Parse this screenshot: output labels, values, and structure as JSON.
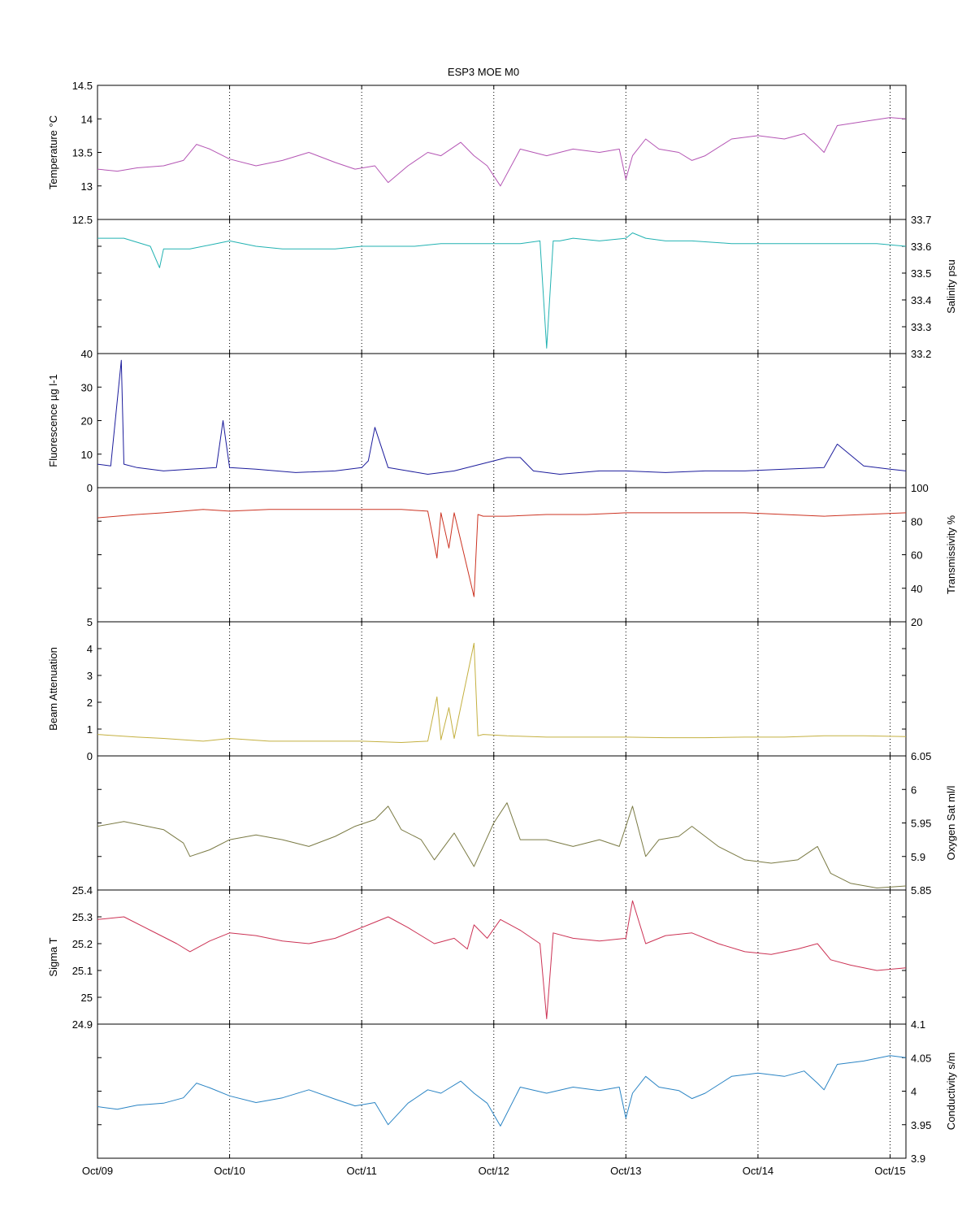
{
  "title": "ESP3 MOE   M0",
  "x_axis": {
    "tick_labels": [
      "Oct/09",
      "Oct/10",
      "Oct/11",
      "Oct/12",
      "Oct/13",
      "Oct/14",
      "Oct/15"
    ],
    "tick_days": [
      0,
      1,
      2,
      3,
      4,
      5,
      6
    ],
    "xlim_days": [
      0,
      6.12
    ],
    "grid": "vertical dotted lines at each day"
  },
  "chart_data": [
    {
      "type": "line",
      "ylabel": "Temperature °C",
      "axis_side": "left",
      "color": "#b455b4",
      "ylim": [
        12.5,
        14.5
      ],
      "ticks": [
        12.5,
        13,
        13.5,
        14,
        14.5
      ],
      "tick_labels": [
        "12.5",
        "13",
        "13.5",
        "14",
        "14.5"
      ],
      "series": [
        {
          "x": [
            0,
            0.15,
            0.3,
            0.5,
            0.65,
            0.75,
            0.85,
            1.0,
            1.2,
            1.4,
            1.6,
            1.8,
            1.95,
            2.1,
            2.2,
            2.35,
            2.5,
            2.6,
            2.75,
            2.85,
            2.95,
            3.05,
            3.2,
            3.4,
            3.6,
            3.8,
            3.95,
            4.0,
            4.05,
            4.15,
            4.25,
            4.4,
            4.5,
            4.6,
            4.8,
            5.0,
            5.2,
            5.35,
            5.45,
            5.5,
            5.6,
            5.8,
            6.0,
            6.12
          ],
          "y": [
            13.25,
            13.22,
            13.27,
            13.3,
            13.38,
            13.62,
            13.55,
            13.4,
            13.3,
            13.38,
            13.5,
            13.35,
            13.25,
            13.3,
            13.05,
            13.3,
            13.5,
            13.45,
            13.65,
            13.45,
            13.3,
            13.0,
            13.55,
            13.45,
            13.55,
            13.5,
            13.55,
            13.1,
            13.45,
            13.7,
            13.55,
            13.5,
            13.38,
            13.45,
            13.7,
            13.75,
            13.7,
            13.78,
            13.6,
            13.5,
            13.9,
            13.96,
            14.02,
            14.0
          ]
        }
      ]
    },
    {
      "type": "line",
      "ylabel": "Salinity psu",
      "axis_side": "right",
      "color": "#22b2b2",
      "ylim": [
        33.2,
        33.7
      ],
      "ticks": [
        33.2,
        33.3,
        33.4,
        33.5,
        33.6,
        33.7
      ],
      "tick_labels": [
        "33.2",
        "33.3",
        "33.4",
        "33.5",
        "33.6",
        "33.7"
      ],
      "series": [
        {
          "x": [
            0,
            0.2,
            0.4,
            0.47,
            0.5,
            0.7,
            0.9,
            1.0,
            1.2,
            1.4,
            1.6,
            1.8,
            2.0,
            2.2,
            2.4,
            2.6,
            2.8,
            3.0,
            3.2,
            3.35,
            3.4,
            3.45,
            3.5,
            3.6,
            3.8,
            4.0,
            4.05,
            4.15,
            4.3,
            4.5,
            4.8,
            5.0,
            5.3,
            5.6,
            5.9,
            6.12
          ],
          "y": [
            33.63,
            33.63,
            33.6,
            33.52,
            33.59,
            33.59,
            33.61,
            33.62,
            33.6,
            33.59,
            33.59,
            33.59,
            33.6,
            33.6,
            33.6,
            33.61,
            33.61,
            33.61,
            33.61,
            33.62,
            33.22,
            33.62,
            33.62,
            33.63,
            33.62,
            33.63,
            33.65,
            33.63,
            33.62,
            33.62,
            33.61,
            33.61,
            33.61,
            33.61,
            33.61,
            33.6
          ]
        }
      ]
    },
    {
      "type": "line",
      "ylabel": "Fluorescence µg l-1",
      "axis_side": "left",
      "color": "#1c1c9c",
      "ylim": [
        0,
        40
      ],
      "ticks": [
        0,
        10,
        20,
        30,
        40
      ],
      "tick_labels": [
        "0",
        "10",
        "20",
        "30",
        "40"
      ],
      "series": [
        {
          "x": [
            0,
            0.1,
            0.18,
            0.2,
            0.3,
            0.5,
            0.7,
            0.9,
            0.95,
            1.0,
            1.2,
            1.5,
            1.8,
            2.0,
            2.05,
            2.1,
            2.2,
            2.35,
            2.5,
            2.7,
            2.9,
            3.0,
            3.1,
            3.2,
            3.3,
            3.5,
            3.8,
            4.0,
            4.3,
            4.6,
            4.9,
            5.2,
            5.5,
            5.6,
            5.8,
            6.0,
            6.12
          ],
          "y": [
            7,
            6.5,
            38,
            7,
            6,
            5,
            5.5,
            6,
            20,
            6,
            5.5,
            4.5,
            5,
            6,
            8,
            18,
            6,
            5,
            4,
            5,
            7,
            8,
            9,
            9,
            5,
            4,
            5,
            5,
            4.5,
            5,
            5,
            5.5,
            6,
            13,
            6.5,
            5.5,
            5
          ]
        }
      ]
    },
    {
      "type": "line",
      "ylabel": "Transmissivity %",
      "axis_side": "right",
      "color": "#cc3322",
      "ylim": [
        20,
        100
      ],
      "ticks": [
        20,
        40,
        60,
        80,
        100
      ],
      "tick_labels": [
        "20",
        "40",
        "60",
        "80",
        "100"
      ],
      "series": [
        {
          "x": [
            0,
            0.3,
            0.5,
            0.8,
            1.0,
            1.3,
            1.6,
            2.0,
            2.3,
            2.5,
            2.57,
            2.6,
            2.66,
            2.7,
            2.85,
            2.88,
            2.92,
            3.1,
            3.4,
            3.7,
            4.0,
            4.3,
            4.6,
            4.9,
            5.2,
            5.5,
            5.8,
            6.12
          ],
          "y": [
            82,
            84,
            85,
            87,
            86,
            87,
            87,
            87,
            87,
            86,
            58,
            85,
            64,
            85,
            35,
            84,
            83,
            83,
            84,
            84,
            85,
            85,
            85,
            85,
            84,
            83,
            84,
            85
          ]
        }
      ]
    },
    {
      "type": "line",
      "ylabel": "Beam Attenuation",
      "axis_side": "left",
      "color": "#c4b040",
      "ylim": [
        0,
        5
      ],
      "ticks": [
        0,
        1,
        2,
        3,
        4,
        5
      ],
      "tick_labels": [
        "0",
        "1",
        "2",
        "3",
        "4",
        "5"
      ],
      "series": [
        {
          "x": [
            0,
            0.3,
            0.5,
            0.8,
            1.0,
            1.3,
            1.6,
            2.0,
            2.3,
            2.5,
            2.57,
            2.6,
            2.66,
            2.7,
            2.85,
            2.88,
            2.92,
            3.1,
            3.4,
            3.7,
            4.0,
            4.3,
            4.6,
            4.9,
            5.2,
            5.5,
            5.8,
            6.12
          ],
          "y": [
            0.8,
            0.7,
            0.65,
            0.55,
            0.65,
            0.55,
            0.55,
            0.55,
            0.5,
            0.55,
            2.2,
            0.6,
            1.8,
            0.65,
            4.2,
            0.75,
            0.8,
            0.75,
            0.7,
            0.7,
            0.7,
            0.68,
            0.68,
            0.7,
            0.7,
            0.75,
            0.75,
            0.72
          ]
        }
      ]
    },
    {
      "type": "line",
      "ylabel": "Oxygen Sat ml/l",
      "axis_side": "right",
      "color": "#7a7a44",
      "ylim": [
        5.85,
        6.05
      ],
      "ticks": [
        5.85,
        5.9,
        5.95,
        6,
        6.05
      ],
      "tick_labels": [
        "5.85",
        "5.9",
        "5.95",
        "6",
        "6.05"
      ],
      "series": [
        {
          "x": [
            0,
            0.2,
            0.5,
            0.65,
            0.7,
            0.85,
            1.0,
            1.2,
            1.4,
            1.6,
            1.8,
            1.95,
            2.1,
            2.2,
            2.3,
            2.45,
            2.55,
            2.7,
            2.85,
            3.0,
            3.1,
            3.2,
            3.4,
            3.6,
            3.8,
            3.95,
            4.05,
            4.15,
            4.25,
            4.4,
            4.5,
            4.7,
            4.9,
            5.1,
            5.3,
            5.45,
            5.55,
            5.7,
            5.9,
            6.12
          ],
          "y": [
            5.945,
            5.952,
            5.94,
            5.92,
            5.9,
            5.91,
            5.925,
            5.932,
            5.925,
            5.915,
            5.93,
            5.945,
            5.955,
            5.975,
            5.94,
            5.925,
            5.895,
            5.935,
            5.885,
            5.95,
            5.98,
            5.925,
            5.925,
            5.915,
            5.925,
            5.915,
            5.975,
            5.9,
            5.925,
            5.93,
            5.945,
            5.915,
            5.895,
            5.89,
            5.895,
            5.915,
            5.875,
            5.86,
            5.853,
            5.856
          ]
        }
      ]
    },
    {
      "type": "line",
      "ylabel": "Sigma T",
      "axis_side": "left",
      "color": "#cc3355",
      "ylim": [
        24.9,
        25.4
      ],
      "ticks": [
        24.9,
        25,
        25.1,
        25.2,
        25.3,
        25.4
      ],
      "tick_labels": [
        "24.9",
        "25",
        "25.1",
        "25.2",
        "25.3",
        "25.4"
      ],
      "series": [
        {
          "x": [
            0,
            0.2,
            0.4,
            0.6,
            0.7,
            0.85,
            1.0,
            1.2,
            1.4,
            1.6,
            1.8,
            1.95,
            2.1,
            2.2,
            2.35,
            2.55,
            2.7,
            2.8,
            2.85,
            2.95,
            3.05,
            3.2,
            3.35,
            3.4,
            3.45,
            3.6,
            3.8,
            4.0,
            4.05,
            4.15,
            4.3,
            4.5,
            4.7,
            4.9,
            5.1,
            5.3,
            5.45,
            5.55,
            5.7,
            5.9,
            6.12
          ],
          "y": [
            25.29,
            25.3,
            25.25,
            25.2,
            25.17,
            25.21,
            25.24,
            25.23,
            25.21,
            25.2,
            25.22,
            25.25,
            25.28,
            25.3,
            25.26,
            25.2,
            25.22,
            25.18,
            25.27,
            25.22,
            25.29,
            25.25,
            25.2,
            24.92,
            25.24,
            25.22,
            25.21,
            25.22,
            25.36,
            25.2,
            25.23,
            25.24,
            25.2,
            25.17,
            25.16,
            25.18,
            25.2,
            25.14,
            25.12,
            25.1,
            25.11
          ]
        }
      ]
    },
    {
      "type": "line",
      "ylabel": "Conductivity s/m",
      "axis_side": "right",
      "color": "#2a84c4",
      "ylim": [
        3.9,
        4.1
      ],
      "ticks": [
        3.9,
        3.95,
        4,
        4.05,
        4.1
      ],
      "tick_labels": [
        "3.9",
        "3.95",
        "4",
        "4.05",
        "4.1"
      ],
      "series": [
        {
          "x": [
            0,
            0.15,
            0.3,
            0.5,
            0.65,
            0.75,
            0.85,
            1.0,
            1.2,
            1.4,
            1.6,
            1.8,
            1.95,
            2.1,
            2.2,
            2.35,
            2.5,
            2.6,
            2.75,
            2.85,
            2.95,
            3.05,
            3.2,
            3.4,
            3.6,
            3.8,
            3.95,
            4.0,
            4.05,
            4.15,
            4.25,
            4.4,
            4.5,
            4.6,
            4.8,
            5.0,
            5.2,
            5.35,
            5.45,
            5.5,
            5.6,
            5.8,
            6.0,
            6.12
          ],
          "y": [
            3.977,
            3.973,
            3.979,
            3.982,
            3.99,
            4.012,
            4.005,
            3.993,
            3.983,
            3.99,
            4.002,
            3.988,
            3.978,
            3.983,
            3.95,
            3.982,
            4.002,
            3.997,
            4.015,
            3.997,
            3.982,
            3.948,
            4.006,
            3.997,
            4.006,
            4.001,
            4.006,
            3.96,
            3.997,
            4.022,
            4.006,
            4.001,
            3.989,
            3.997,
            4.022,
            4.027,
            4.022,
            4.03,
            4.012,
            4.002,
            4.04,
            4.045,
            4.053,
            4.05
          ]
        }
      ]
    }
  ]
}
